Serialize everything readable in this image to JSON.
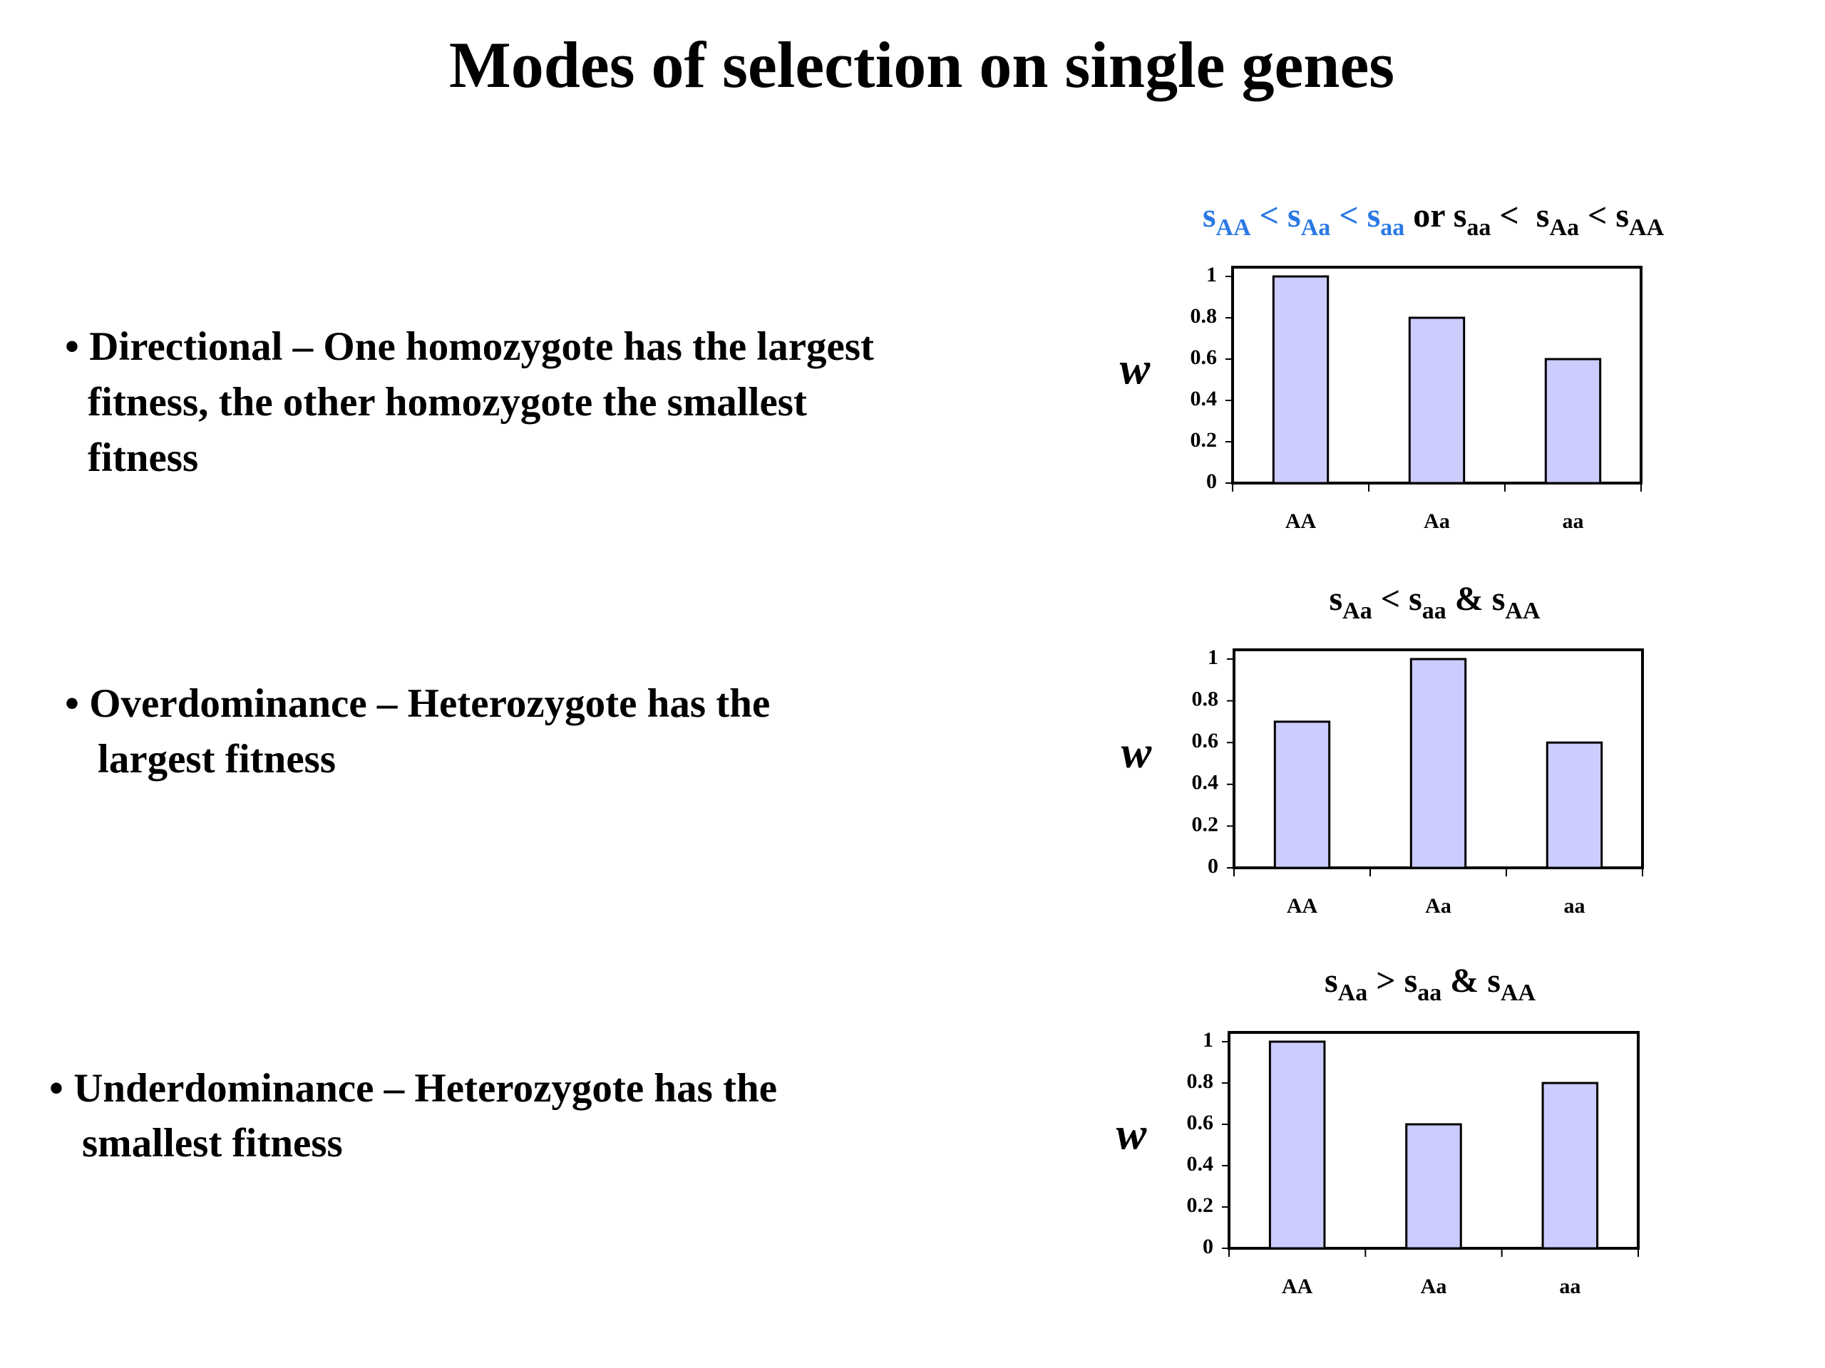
{
  "title": "Modes of selection on single genes",
  "bullets": [
    [
      "• Directional – One homozygote has the largest",
      "fitness, the other homozygote the smallest",
      "fitness"
    ],
    [
      "• Overdominance – Heterozygote has the",
      "largest fitness"
    ],
    [
      "• Underdominance – Heterozygote has the",
      "smallest fitness"
    ]
  ],
  "chart_data": [
    {
      "type": "bar",
      "title_runs": [
        {
          "text": "s",
          "color": "#2a78e4"
        },
        {
          "sub": "AA",
          "color": "#2a78e4"
        },
        {
          "text": " < s",
          "color": "#2a78e4"
        },
        {
          "sub": "Aa",
          "color": "#2a78e4"
        },
        {
          "text": " < s",
          "color": "#2a78e4"
        },
        {
          "sub": "aa",
          "color": "#2a78e4"
        },
        {
          "text": " or s"
        },
        {
          "sub": "aa"
        },
        {
          "text": " <  s"
        },
        {
          "sub": "Aa"
        },
        {
          "text": " < s"
        },
        {
          "sub": "AA"
        }
      ],
      "y_label": "w",
      "categories": [
        "AA",
        "Aa",
        "aa"
      ],
      "values": [
        1,
        0.8,
        0.6
      ],
      "color": "#ccccff",
      "ylim": [
        0,
        1
      ],
      "yticks": [
        0,
        0.2,
        0.4,
        0.6,
        0.8,
        1
      ]
    },
    {
      "type": "bar",
      "title_runs": [
        {
          "text": "s"
        },
        {
          "sub": "Aa"
        },
        {
          "text": " < s"
        },
        {
          "sub": "aa"
        },
        {
          "text": " & s"
        },
        {
          "sub": "AA"
        }
      ],
      "y_label": "w",
      "categories": [
        "AA",
        "Aa",
        "aa"
      ],
      "values": [
        0.7,
        1,
        0.6
      ],
      "color": "#ccccff",
      "ylim": [
        0,
        1
      ],
      "yticks": [
        0,
        0.2,
        0.4,
        0.6,
        0.8,
        1
      ]
    },
    {
      "type": "bar",
      "title_runs": [
        {
          "text": "s"
        },
        {
          "sub": "Aa"
        },
        {
          "text": " > s"
        },
        {
          "sub": "aa"
        },
        {
          "text": " & s"
        },
        {
          "sub": "AA"
        }
      ],
      "y_label": "w",
      "categories": [
        "AA",
        "Aa",
        "aa"
      ],
      "values": [
        1,
        0.6,
        0.8
      ],
      "color": "#ccccff",
      "ylim": [
        0,
        1
      ],
      "yticks": [
        0,
        0.2,
        0.4,
        0.6,
        0.8,
        1
      ]
    }
  ]
}
